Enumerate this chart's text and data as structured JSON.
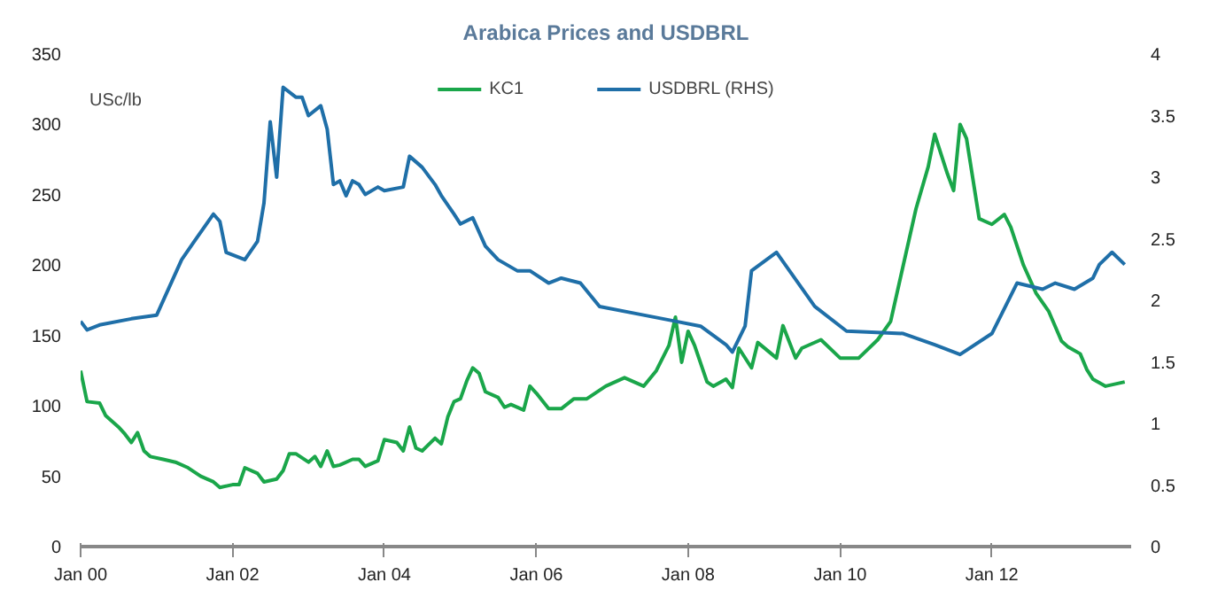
{
  "chart_data": {
    "type": "line",
    "title": "Arabica Prices and USDBRL",
    "ylabel": "USc/lb",
    "legend": "top",
    "grid": false,
    "xlim": [
      "2000-01",
      "2013-11"
    ],
    "ylim": [
      0,
      350
    ],
    "yticks": [
      0,
      50,
      100,
      150,
      200,
      250,
      300,
      350
    ],
    "y2lim": [
      0,
      4
    ],
    "y2ticks": [
      0,
      0.5,
      1,
      1.5,
      2,
      2.5,
      3,
      3.5,
      4
    ],
    "xticks": [
      {
        "value": "2000-01",
        "label": "Jan 00"
      },
      {
        "value": "2002-01",
        "label": "Jan 02"
      },
      {
        "value": "2004-01",
        "label": "Jan 04"
      },
      {
        "value": "2006-01",
        "label": "Jan 06"
      },
      {
        "value": "2008-01",
        "label": "Jan 08"
      },
      {
        "value": "2010-01",
        "label": "Jan 10"
      },
      {
        "value": "2012-01",
        "label": "Jan 12"
      }
    ],
    "series": [
      {
        "name": "KC1",
        "color": "#1aa64a",
        "x": [
          "2000-01",
          "2000-02",
          "2000-04",
          "2000-05",
          "2000-07",
          "2000-08",
          "2000-09",
          "2000-10",
          "2000-11",
          "2000-12",
          "2001-02",
          "2001-04",
          "2001-06",
          "2001-08",
          "2001-10",
          "2001-11",
          "2002-01",
          "2002-02",
          "2002-03",
          "2002-05",
          "2002-06",
          "2002-08",
          "2002-09",
          "2002-10",
          "2002-11",
          "2003-01",
          "2003-02",
          "2003-03",
          "2003-04",
          "2003-05",
          "2003-06",
          "2003-08",
          "2003-09",
          "2003-10",
          "2003-12",
          "2004-01",
          "2004-03",
          "2004-04",
          "2004-05",
          "2004-06",
          "2004-07",
          "2004-09",
          "2004-10",
          "2004-11",
          "2004-12",
          "2005-01",
          "2005-02",
          "2005-03",
          "2005-04",
          "2005-05",
          "2005-07",
          "2005-08",
          "2005-09",
          "2005-11",
          "2005-12",
          "2006-01",
          "2006-03",
          "2006-05",
          "2006-07",
          "2006-09",
          "2006-12",
          "2007-03",
          "2007-06",
          "2007-08",
          "2007-10",
          "2007-11",
          "2007-12",
          "2008-01",
          "2008-02",
          "2008-04",
          "2008-05",
          "2008-07",
          "2008-08",
          "2008-09",
          "2008-11",
          "2008-12",
          "2009-03",
          "2009-04",
          "2009-06",
          "2009-07",
          "2009-10",
          "2010-01",
          "2010-04",
          "2010-07",
          "2010-09",
          "2010-11",
          "2011-01",
          "2011-03",
          "2011-04",
          "2011-06",
          "2011-07",
          "2011-08",
          "2011-09",
          "2011-11",
          "2012-01",
          "2012-03",
          "2012-04",
          "2012-06",
          "2012-08",
          "2012-10",
          "2012-12",
          "2013-01",
          "2013-03",
          "2013-04",
          "2013-05",
          "2013-07",
          "2013-10"
        ],
        "values": [
          125,
          103,
          102,
          93,
          85,
          80,
          74,
          81,
          68,
          64,
          62,
          60,
          56,
          50,
          46,
          42,
          44,
          44,
          56,
          52,
          46,
          48,
          54,
          66,
          66,
          60,
          64,
          57,
          68,
          57,
          58,
          62,
          62,
          57,
          61,
          76,
          74,
          68,
          85,
          70,
          68,
          77,
          73,
          92,
          103,
          105,
          118,
          127,
          123,
          110,
          106,
          99,
          101,
          97,
          114,
          109,
          98,
          98,
          105,
          105,
          114,
          120,
          114,
          125,
          143,
          163,
          131,
          153,
          143,
          117,
          114,
          119,
          113,
          141,
          127,
          145,
          134,
          157,
          134,
          141,
          147,
          134,
          134,
          147,
          160,
          200,
          240,
          270,
          293,
          265,
          253,
          300,
          290,
          233,
          229,
          236,
          227,
          200,
          180,
          167,
          146,
          142,
          137,
          126,
          119,
          114,
          117
        ]
      },
      {
        "name": "USDBRL (RHS)",
        "color": "#1f6fa8",
        "axis": "y2",
        "x": [
          "2000-01",
          "2000-02",
          "2000-04",
          "2000-09",
          "2001-01",
          "2001-05",
          "2001-07",
          "2001-10",
          "2001-11",
          "2001-12",
          "2002-03",
          "2002-05",
          "2002-06",
          "2002-07",
          "2002-08",
          "2002-09",
          "2002-11",
          "2002-12",
          "2003-01",
          "2003-03",
          "2003-04",
          "2003-05",
          "2003-06",
          "2003-07",
          "2003-08",
          "2003-09",
          "2003-10",
          "2003-12",
          "2004-01",
          "2004-04",
          "2004-05",
          "2004-07",
          "2004-09",
          "2004-10",
          "2004-12",
          "2005-01",
          "2005-03",
          "2005-05",
          "2005-07",
          "2005-10",
          "2005-12",
          "2006-03",
          "2006-05",
          "2006-08",
          "2006-11",
          "2007-04",
          "2007-11",
          "2008-03",
          "2008-07",
          "2008-08",
          "2008-10",
          "2008-11",
          "2009-03",
          "2009-09",
          "2010-02",
          "2010-11",
          "2011-04",
          "2011-08",
          "2012-01",
          "2012-05",
          "2012-09",
          "2012-11",
          "2013-02",
          "2013-05",
          "2013-06",
          "2013-08",
          "2013-10"
        ],
        "values": [
          1.83,
          1.76,
          1.8,
          1.85,
          1.88,
          2.33,
          2.48,
          2.7,
          2.64,
          2.39,
          2.33,
          2.48,
          2.79,
          3.45,
          3.0,
          3.73,
          3.65,
          3.65,
          3.5,
          3.58,
          3.39,
          2.94,
          2.97,
          2.85,
          2.97,
          2.94,
          2.86,
          2.92,
          2.89,
          2.92,
          3.17,
          3.08,
          2.94,
          2.85,
          2.7,
          2.62,
          2.67,
          2.44,
          2.33,
          2.24,
          2.24,
          2.14,
          2.18,
          2.14,
          1.95,
          1.9,
          1.83,
          1.79,
          1.64,
          1.58,
          1.79,
          2.24,
          2.39,
          1.95,
          1.75,
          1.73,
          1.64,
          1.56,
          1.73,
          2.14,
          2.09,
          2.14,
          2.09,
          2.18,
          2.29,
          2.39,
          2.29
        ]
      }
    ]
  }
}
